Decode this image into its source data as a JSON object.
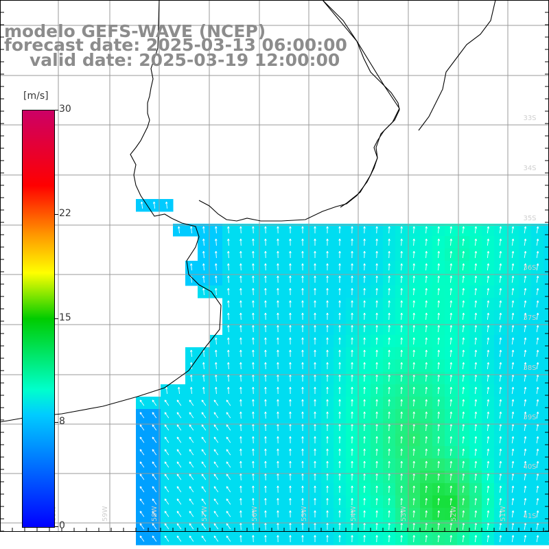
{
  "header": {
    "model_line": "modelo GEFS-WAVE (NCEP)",
    "forecast_line": "forecast date: 2025-03-13 06:00:00",
    "valid_line": "valid date: 2025-03-19 12:00:00"
  },
  "legend": {
    "unit": "[m/s]",
    "min": 0,
    "max": 30,
    "ticks": [
      "30",
      "22",
      "15",
      "8",
      "0"
    ],
    "colors": [
      "#0000ff",
      "#00ccff",
      "#00ffcc",
      "#00cc00",
      "#ffff00",
      "#ff9900",
      "#ff0000",
      "#cc0066"
    ]
  },
  "map": {
    "lat_labels": [
      "33S",
      "34S",
      "35S",
      "36S",
      "37S",
      "38S",
      "39S",
      "40S",
      "41S"
    ],
    "lon_labels": [
      "60W",
      "59W",
      "58W",
      "57W",
      "56W",
      "55W",
      "54W",
      "53W",
      "52W",
      "51W"
    ],
    "land_color": "#ffffff",
    "grid_color": "#9a9a9a"
  }
}
